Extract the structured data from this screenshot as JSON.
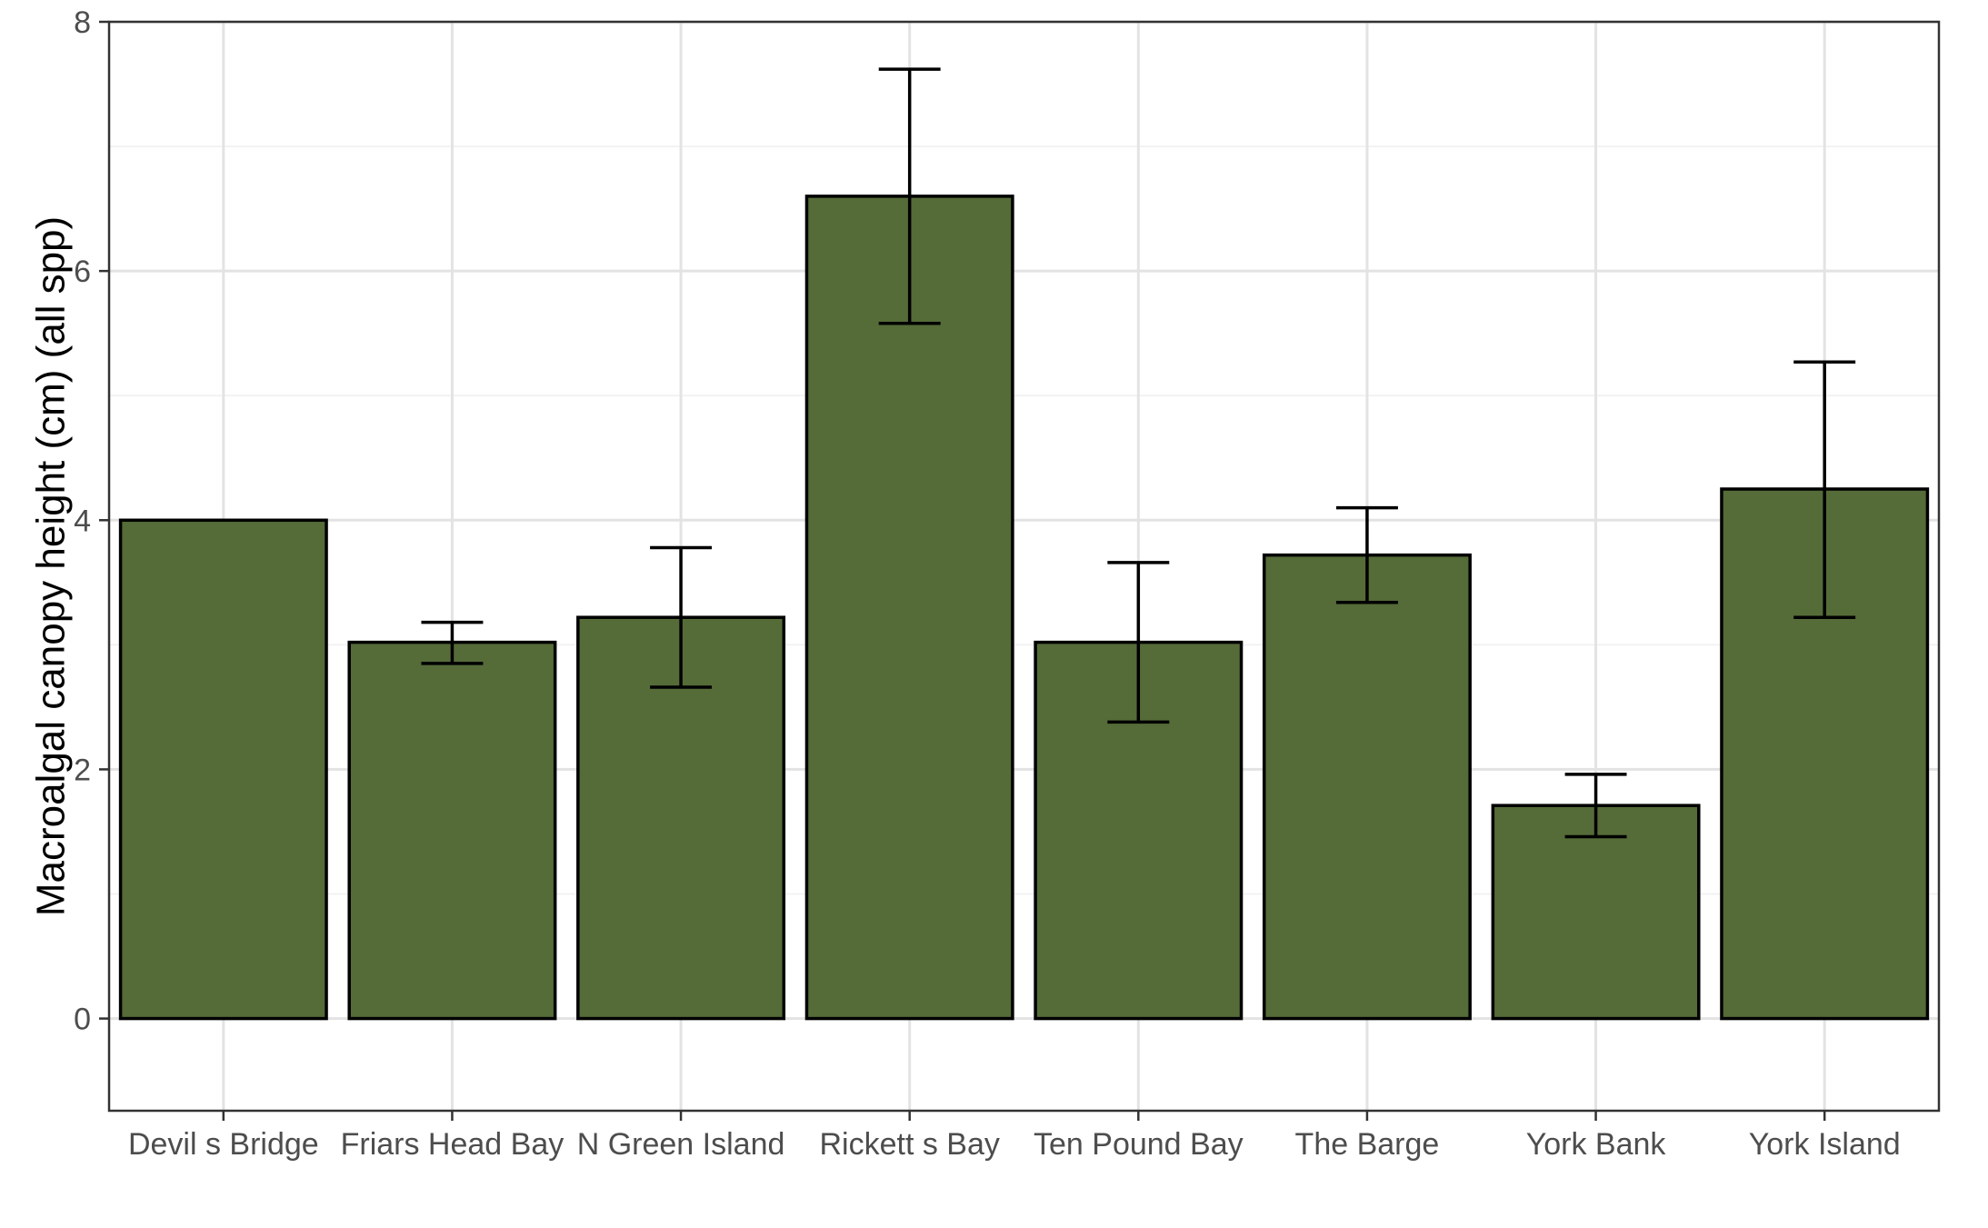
{
  "chart_data": {
    "type": "bar",
    "title": "",
    "xlabel": "",
    "ylabel": "Macroalgal canopy height (cm) (all spp)",
    "categories": [
      "Devil s Bridge",
      "Friars Head Bay",
      "N Green Island",
      "Rickett s Bay",
      "Ten Pound Bay",
      "The Barge",
      "York Bank",
      "York Island"
    ],
    "values": [
      4.0,
      3.02,
      3.22,
      6.6,
      3.02,
      3.72,
      1.71,
      4.25
    ],
    "error_lower": [
      null,
      2.85,
      2.66,
      5.58,
      2.38,
      3.34,
      1.46,
      3.22
    ],
    "error_upper": [
      null,
      3.18,
      3.78,
      7.62,
      3.66,
      4.1,
      1.96,
      5.27
    ],
    "ylim": [
      -0.74,
      8.0
    ],
    "yticks": [
      0,
      2,
      4,
      6,
      8
    ],
    "grid": true,
    "legend": "none",
    "colors": {
      "bar_fill": "#556b38",
      "bar_stroke": "#000000",
      "grid_major": "#e3e3e3",
      "grid_minor": "#efefef",
      "panel_border": "#333333",
      "tick_text": "#4d4d4d"
    }
  }
}
